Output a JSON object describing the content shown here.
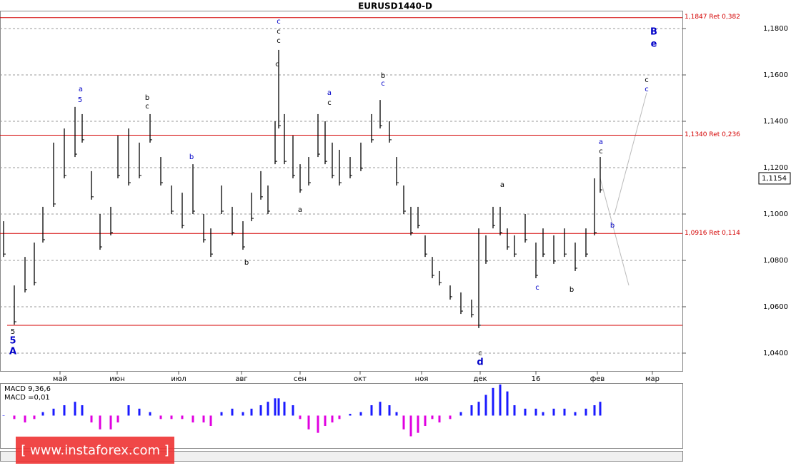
{
  "chart_data": {
    "type": "hlbar",
    "title": "EURUSD1440-D",
    "x": [
      1.25,
      5,
      8.75,
      12,
      15,
      18.75,
      22.5,
      26.25,
      28.75,
      32,
      35,
      38.75,
      41.25,
      45,
      48.75,
      52.5,
      56.25,
      60,
      63.75,
      67.5,
      71.25,
      73.75,
      77.5,
      81.25,
      85,
      88,
      91.25,
      93.75,
      96.25,
      97.5,
      99.5,
      102.5,
      105,
      108,
      111.25,
      113.75,
      116.25,
      118.75,
      122.5,
      126.25,
      130,
      133,
      136.25,
      138.75,
      141.25,
      143.75,
      146.25,
      148.75,
      151.25,
      153.75,
      157.5,
      161.25,
      165,
      167.5,
      170,
      172.5,
      175,
      177.5,
      180,
      183.75,
      187.5,
      190,
      193.75,
      197.5,
      201.25,
      205,
      208,
      210
    ],
    "series": [
      {
        "name": "High",
        "color": "#000000",
        "values": [
          1.0969,
          1.0692,
          1.0815,
          1.0877,
          1.1031,
          1.1308,
          1.1369,
          1.1462,
          1.1431,
          1.1185,
          1.1,
          1.1031,
          1.1338,
          1.1369,
          1.1308,
          1.1431,
          1.1246,
          1.1123,
          1.1092,
          1.1215,
          1.1,
          1.0938,
          1.1123,
          1.1031,
          1.0969,
          1.1092,
          1.1185,
          1.1123,
          1.14,
          1.1708,
          1.1431,
          1.1338,
          1.1215,
          1.1246,
          1.1431,
          1.14,
          1.1308,
          1.1277,
          1.1246,
          1.1308,
          1.1431,
          1.1492,
          1.14,
          1.1246,
          1.1123,
          1.1031,
          1.1031,
          1.0908,
          1.0815,
          1.0754,
          1.0692,
          1.0662,
          1.0631,
          1.0938,
          1.0908,
          1.1031,
          1.1031,
          1.0938,
          1.0908,
          1.1,
          1.0877,
          1.0938,
          1.0908,
          1.0938,
          1.0877,
          1.0938,
          1.1154,
          1.1246
        ]
      },
      {
        "name": "Low",
        "color": "#000000",
        "values": [
          1.0815,
          1.0523,
          1.0662,
          1.0692,
          1.0877,
          1.1031,
          1.1154,
          1.1246,
          1.1308,
          1.1062,
          1.0846,
          1.0908,
          1.1154,
          1.1123,
          1.1154,
          1.1308,
          1.1123,
          1.1,
          1.0938,
          1.1,
          1.0877,
          1.0815,
          1.1,
          1.0908,
          1.0846,
          1.0969,
          1.1062,
          1.1,
          1.1215,
          1.1369,
          1.1215,
          1.1154,
          1.1092,
          1.1123,
          1.1246,
          1.1215,
          1.1154,
          1.1123,
          1.1154,
          1.1185,
          1.1308,
          1.1369,
          1.1308,
          1.1123,
          1.1,
          1.0908,
          1.0938,
          1.0815,
          1.0723,
          1.0692,
          1.0631,
          1.0569,
          1.0554,
          1.0508,
          1.0785,
          1.0938,
          1.0908,
          1.0846,
          1.0815,
          1.0877,
          1.0723,
          1.0815,
          1.0785,
          1.0815,
          1.0754,
          1.0815,
          1.0908,
          1.1092
        ]
      }
    ],
    "xlim": [
      0,
      238.75
    ],
    "xticks": [
      {
        "value": 21,
        "label": "май"
      },
      {
        "value": 41,
        "label": "июн"
      },
      {
        "value": 62.5,
        "label": "июл"
      },
      {
        "value": 84.5,
        "label": "авг"
      },
      {
        "value": 105,
        "label": "сен"
      },
      {
        "value": 126,
        "label": "окт"
      },
      {
        "value": 147.5,
        "label": "ноя"
      },
      {
        "value": 168,
        "label": "дек"
      },
      {
        "value": 187.5,
        "label": "16"
      },
      {
        "value": 209,
        "label": "фев"
      },
      {
        "value": 228.25,
        "label": "мар"
      }
    ],
    "ylim": [
      1.0323,
      1.1877
    ],
    "yticks": [
      {
        "value": 1.04,
        "label": "1,0400"
      },
      {
        "value": 1.06,
        "label": "1,0600"
      },
      {
        "value": 1.08,
        "label": "1,0800"
      },
      {
        "value": 1.1,
        "label": "1,1000"
      },
      {
        "value": 1.12,
        "label": "1,1200"
      },
      {
        "value": 1.14,
        "label": "1,1400"
      },
      {
        "value": 1.16,
        "label": "1,1600"
      },
      {
        "value": 1.18,
        "label": "1,1800"
      }
    ],
    "grid": true,
    "levels": [
      {
        "value": 1.1847,
        "label": "1,1847 Ret 0,382"
      },
      {
        "value": 1.134,
        "label": "1,1340 Ret 0,236"
      },
      {
        "value": 1.0916,
        "label": "1,0916 Ret 0,114"
      }
    ],
    "level_color": "#d40000",
    "support_line": 1.052,
    "last_price": {
      "value": 1.1154,
      "label": "1,1154"
    },
    "annotations": [
      {
        "text": "c",
        "color": "#0000c8"
      },
      {
        "text": "c",
        "color": "#000000"
      },
      {
        "text": "c",
        "color": "#000000"
      },
      {
        "text": "B",
        "color": "#0000c8"
      },
      {
        "text": "e",
        "color": "#0000c8"
      },
      {
        "text": "c",
        "color": "#000000"
      },
      {
        "text": "c",
        "color": "#0000c8"
      },
      {
        "text": "5",
        "color": "#000000"
      },
      {
        "text": "5",
        "color": "#0000c8"
      },
      {
        "text": "A",
        "color": "#0000c8"
      },
      {
        "text": "c",
        "color": "#000000"
      },
      {
        "text": "d",
        "color": "#0000c8"
      },
      {
        "text": "a",
        "color": "#0000c8"
      },
      {
        "text": "5",
        "color": "#0000c8"
      },
      {
        "text": "b",
        "color": "#000000"
      },
      {
        "text": "c",
        "color": "#000000"
      },
      {
        "text": "a",
        "color": "#0000c8"
      },
      {
        "text": "c",
        "color": "#000000"
      },
      {
        "text": "b",
        "color": "#000000"
      },
      {
        "text": "c",
        "color": "#0000c8"
      },
      {
        "text": "a",
        "color": "#0000c8"
      },
      {
        "text": "c",
        "color": "#000000"
      },
      {
        "text": "b",
        "color": "#0000c8"
      },
      {
        "text": "b",
        "color": "#000000"
      },
      {
        "text": "a",
        "color": "#000000"
      },
      {
        "text": "c",
        "color": "#0000c8"
      },
      {
        "text": "b",
        "color": "#0000c8"
      },
      {
        "text": "c",
        "color": "#000000"
      },
      {
        "text": "a",
        "color": "#000000"
      },
      {
        "text": "b",
        "color": "#000000"
      }
    ],
    "macd": {
      "title": "MACD 9,36,6",
      "value_label": "MACD =0,01",
      "ylim": [
        -0.0092,
        0.0092
      ],
      "positive_color": "#1a1aff",
      "negative_color": "#e000e0",
      "values": [
        0,
        -0.001,
        -0.002,
        -0.001,
        0.001,
        0.002,
        0.003,
        0.004,
        0.003,
        -0.002,
        -0.004,
        -0.004,
        -0.002,
        0.003,
        0.002,
        0.001,
        -0.001,
        -0.001,
        -0.001,
        -0.002,
        -0.002,
        -0.003,
        0.001,
        0.002,
        0.001,
        0.002,
        0.003,
        0.004,
        0.005,
        0.005,
        0.004,
        0.003,
        -0.001,
        -0.004,
        -0.005,
        -0.003,
        -0.002,
        -0.001,
        0.0005,
        0.001,
        0.003,
        0.004,
        0.003,
        0.001,
        -0.004,
        -0.006,
        -0.005,
        -0.003,
        -0.001,
        -0.002,
        -0.001,
        0.001,
        0.003,
        0.004,
        0.006,
        0.008,
        0.009,
        0.007,
        0.003,
        0.002,
        0.002,
        0.001,
        0.002,
        0.002,
        0.001,
        0.002,
        0.003,
        0.004
      ]
    },
    "watermark": "[ www.instaforex.com ]"
  }
}
